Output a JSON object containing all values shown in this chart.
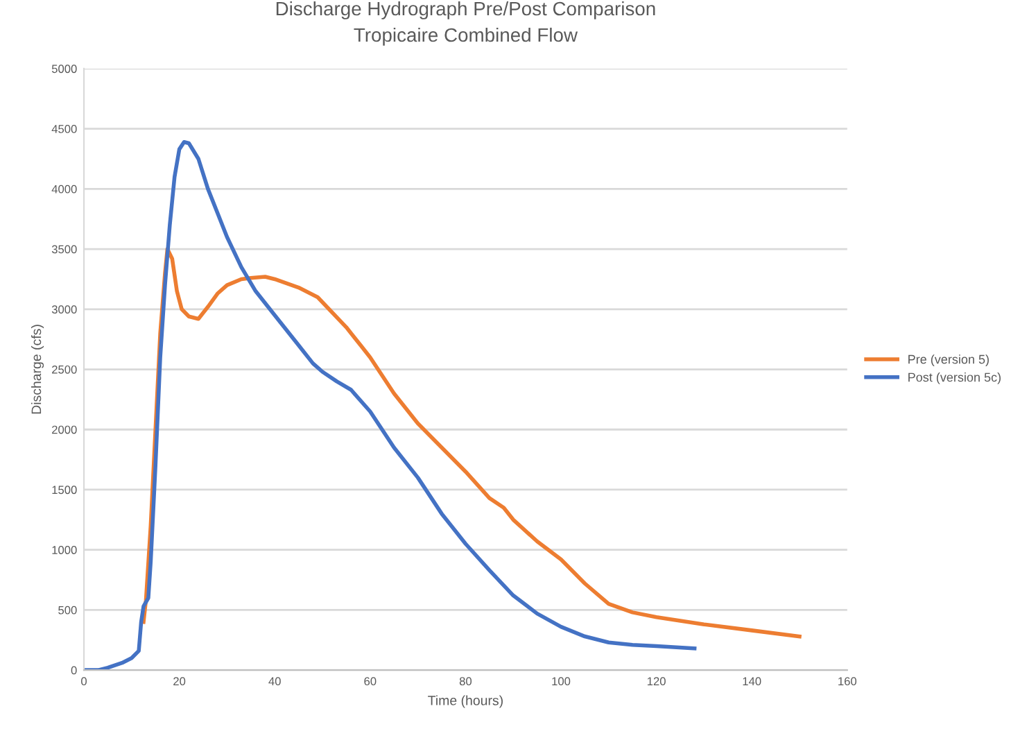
{
  "chart_data": {
    "type": "line",
    "title": "Discharge Hydrograph Pre/Post Comparison\nTropicaire Combined Flow",
    "xlabel": "Time (hours)",
    "ylabel": "Discharge (cfs)",
    "xlim": [
      0,
      160
    ],
    "xticks": [
      0,
      20,
      40,
      60,
      80,
      100,
      120,
      140,
      160
    ],
    "ylim": [
      0,
      5000
    ],
    "yticks": [
      0,
      500,
      1000,
      1500,
      2000,
      2500,
      3000,
      3500,
      4000,
      4500,
      5000
    ],
    "grid": "y",
    "legend": "right",
    "marker": "none",
    "line_style": "solid",
    "series": [
      {
        "name": "Pre (version 5)",
        "color": "#ed7d31",
        "x": [
          12.5,
          13,
          14,
          15,
          16,
          17,
          17.5,
          18.5,
          19.5,
          20.5,
          22,
          24,
          26,
          28,
          30,
          33,
          35,
          38,
          40,
          45,
          49,
          55,
          58,
          60,
          65,
          70,
          75,
          80,
          85,
          88,
          90,
          95,
          100,
          105,
          110,
          115,
          120,
          130,
          140,
          150
        ],
        "values": [
          400,
          580,
          1200,
          2000,
          2800,
          3300,
          3500,
          3420,
          3150,
          3000,
          2940,
          2920,
          3020,
          3130,
          3200,
          3250,
          3260,
          3270,
          3250,
          3180,
          3100,
          2850,
          2700,
          2600,
          2300,
          2050,
          1850,
          1650,
          1430,
          1350,
          1250,
          1070,
          920,
          720,
          550,
          480,
          440,
          380,
          330,
          280
        ]
      },
      {
        "name": "Post (version 5c)",
        "color": "#4472c4",
        "x": [
          0,
          3,
          5,
          8,
          10,
          11.5,
          12,
          12.5,
          13.5,
          14,
          15,
          16,
          17,
          18,
          19,
          20,
          21,
          22,
          24,
          26,
          28,
          30,
          33,
          36,
          40,
          45,
          48,
          50,
          53,
          56,
          60,
          65,
          70,
          75,
          80,
          85,
          90,
          95,
          100,
          105,
          110,
          115,
          120,
          128
        ],
        "values": [
          0,
          0,
          20,
          60,
          100,
          160,
          400,
          530,
          600,
          900,
          1700,
          2600,
          3200,
          3700,
          4100,
          4330,
          4390,
          4380,
          4250,
          4000,
          3800,
          3600,
          3350,
          3150,
          2950,
          2700,
          2550,
          2480,
          2400,
          2330,
          2150,
          1850,
          1600,
          1300,
          1050,
          830,
          620,
          470,
          360,
          280,
          230,
          210,
          200,
          180
        ]
      }
    ]
  }
}
